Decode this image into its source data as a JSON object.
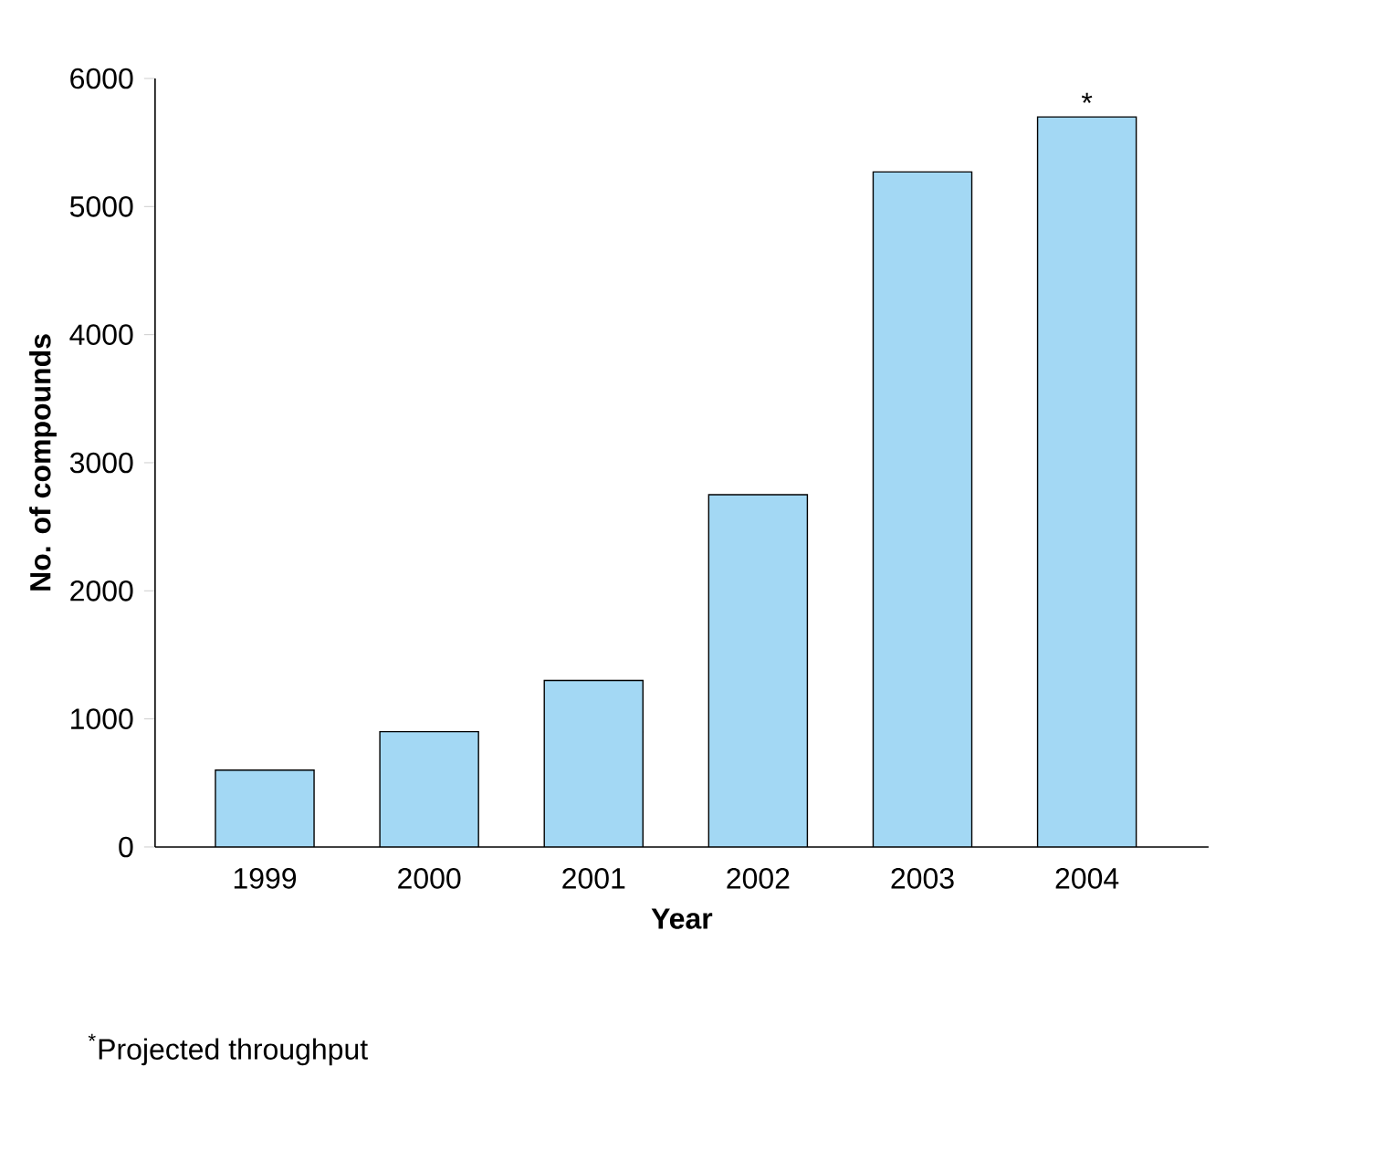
{
  "chart_data": {
    "type": "bar",
    "xlabel": "Year",
    "ylabel": "No. of compounds",
    "categories": [
      "1999",
      "2000",
      "2001",
      "2002",
      "2003",
      "2004"
    ],
    "values": [
      600,
      900,
      1300,
      2750,
      5270,
      5700
    ],
    "color": "#a3d8f4",
    "ylim": [
      0,
      6000
    ],
    "yticks": [
      0,
      1000,
      2000,
      3000,
      4000,
      5000,
      6000
    ],
    "annotations": [
      {
        "text": "*",
        "x": "2004",
        "y": 5700
      },
      "$^{*}$Projected throughput"
    ]
  }
}
